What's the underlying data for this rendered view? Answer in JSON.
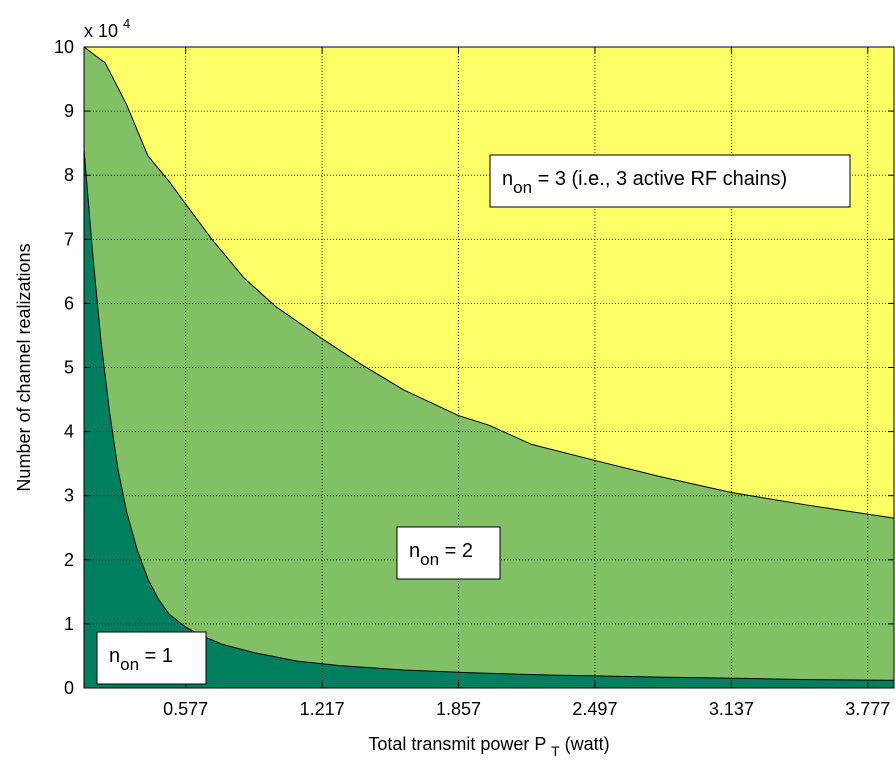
{
  "chart_data": {
    "type": "area",
    "title": "",
    "xlabel": "Total transmit power P",
    "xlabel_sub": "T",
    "xlabel_suffix": " (watt)",
    "ylabel": "Number of channel realizations",
    "y_multiplier_label": "x 10",
    "y_multiplier_exp": "4",
    "xlim": [
      0.1,
      3.9
    ],
    "ylim": [
      0,
      10
    ],
    "xticks": [
      0.577,
      1.217,
      1.857,
      2.497,
      3.137,
      3.777
    ],
    "xtick_labels": [
      "0.577",
      "1.217",
      "1.857",
      "2.497",
      "3.137",
      "3.777"
    ],
    "yticks": [
      0,
      1,
      2,
      3,
      4,
      5,
      6,
      7,
      8,
      9,
      10
    ],
    "ytick_labels": [
      "0",
      "1",
      "2",
      "3",
      "4",
      "5",
      "6",
      "7",
      "8",
      "9",
      "10"
    ],
    "grid": true,
    "series": [
      {
        "name": "n_on = 1",
        "color": "#007f5f",
        "x": [
          0.1,
          0.14,
          0.18,
          0.22,
          0.26,
          0.3,
          0.35,
          0.4,
          0.45,
          0.5,
          0.577,
          0.65,
          0.75,
          0.9,
          1.1,
          1.3,
          1.6,
          1.9,
          2.3,
          2.8,
          3.2,
          3.5,
          3.9
        ],
        "values": [
          8.4,
          6.8,
          5.4,
          4.3,
          3.4,
          2.75,
          2.15,
          1.7,
          1.38,
          1.15,
          0.95,
          0.82,
          0.68,
          0.55,
          0.42,
          0.35,
          0.28,
          0.24,
          0.2,
          0.17,
          0.15,
          0.13,
          0.12
        ]
      },
      {
        "name": "n_on = 2",
        "color": "#82c065",
        "x": [
          0.1,
          0.2,
          0.3,
          0.4,
          0.5,
          0.577,
          0.7,
          0.85,
          1.0,
          1.217,
          1.4,
          1.6,
          1.857,
          2.0,
          2.2,
          2.497,
          2.8,
          3.137,
          3.5,
          3.9
        ],
        "values": [
          10.0,
          9.75,
          9.1,
          8.3,
          7.9,
          7.55,
          7.0,
          6.4,
          5.95,
          5.45,
          5.05,
          4.65,
          4.25,
          4.1,
          3.8,
          3.55,
          3.3,
          3.05,
          2.85,
          2.65
        ]
      },
      {
        "name": "n_on = 3 (i.e., 3 active RF chains)",
        "color": "#ffff66",
        "x": [
          0.1,
          3.9
        ],
        "values": [
          10,
          10
        ]
      }
    ],
    "annotations": [
      {
        "name": "annotation-non3",
        "pre": "n",
        "sub": "on",
        "post": " = 3 (i.e., 3 active RF chains)"
      },
      {
        "name": "annotation-non2",
        "pre": "n",
        "sub": "on",
        "post": " = 2"
      },
      {
        "name": "annotation-non1",
        "pre": "n",
        "sub": "on",
        "post": " = 1"
      }
    ]
  }
}
